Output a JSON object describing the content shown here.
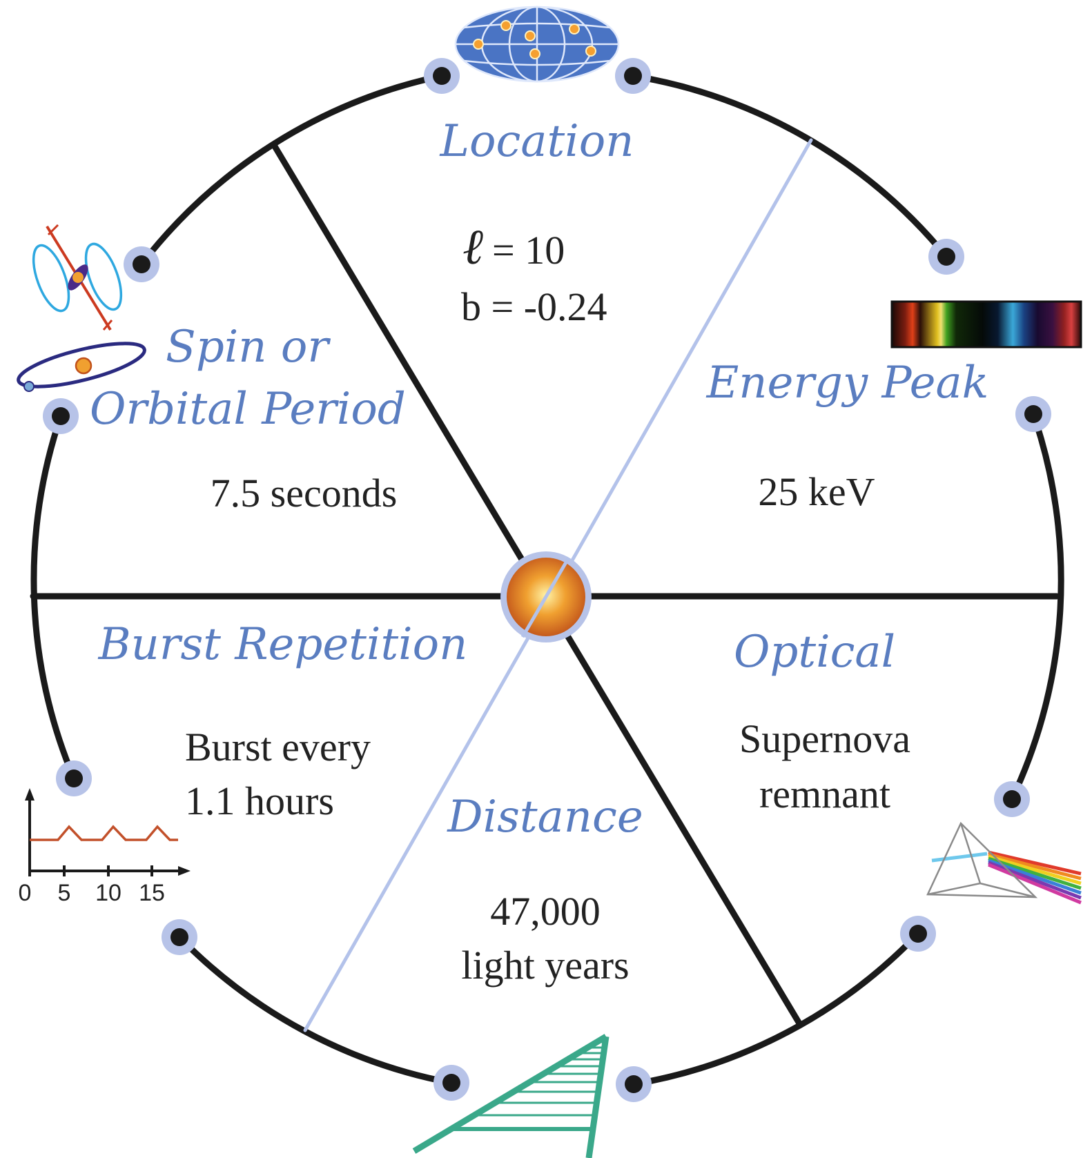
{
  "colors": {
    "ring": "#1a1a1a",
    "node_halo": "#b7c3e8",
    "heading_text": "#5a7dc0",
    "axis_light": "#b3c2ea",
    "ladder": "#3aa88a",
    "burst_trace": "#c2502a"
  },
  "segments": {
    "location": {
      "label": "Location",
      "l_value": "= 10",
      "b_value": "b = -0.24",
      "icon": "sky-map-icon"
    },
    "energy_peak": {
      "label": "Energy Peak",
      "value": "25 keV",
      "icon": "spectrum-icon"
    },
    "optical": {
      "label": "Optical",
      "value_line1": "Supernova",
      "value_line2": "remnant",
      "icon": "prism-icon"
    },
    "distance": {
      "label": "Distance",
      "value_line1": "47,000",
      "value_line2": "light years",
      "icon": "distance-ladder-icon"
    },
    "burst_repetition": {
      "label": "Burst Repetition",
      "value_line1": "Burst every",
      "value_line2": "1.1 hours",
      "icon": "burst-chart-icon",
      "axis_ticks": [
        "0",
        "5",
        "10",
        "15"
      ]
    },
    "spin_period": {
      "label_line1": "Spin or",
      "label_line2": "Orbital Period",
      "value": "7.5 seconds",
      "icons": [
        "pulsar-icon",
        "orbit-icon"
      ]
    }
  }
}
